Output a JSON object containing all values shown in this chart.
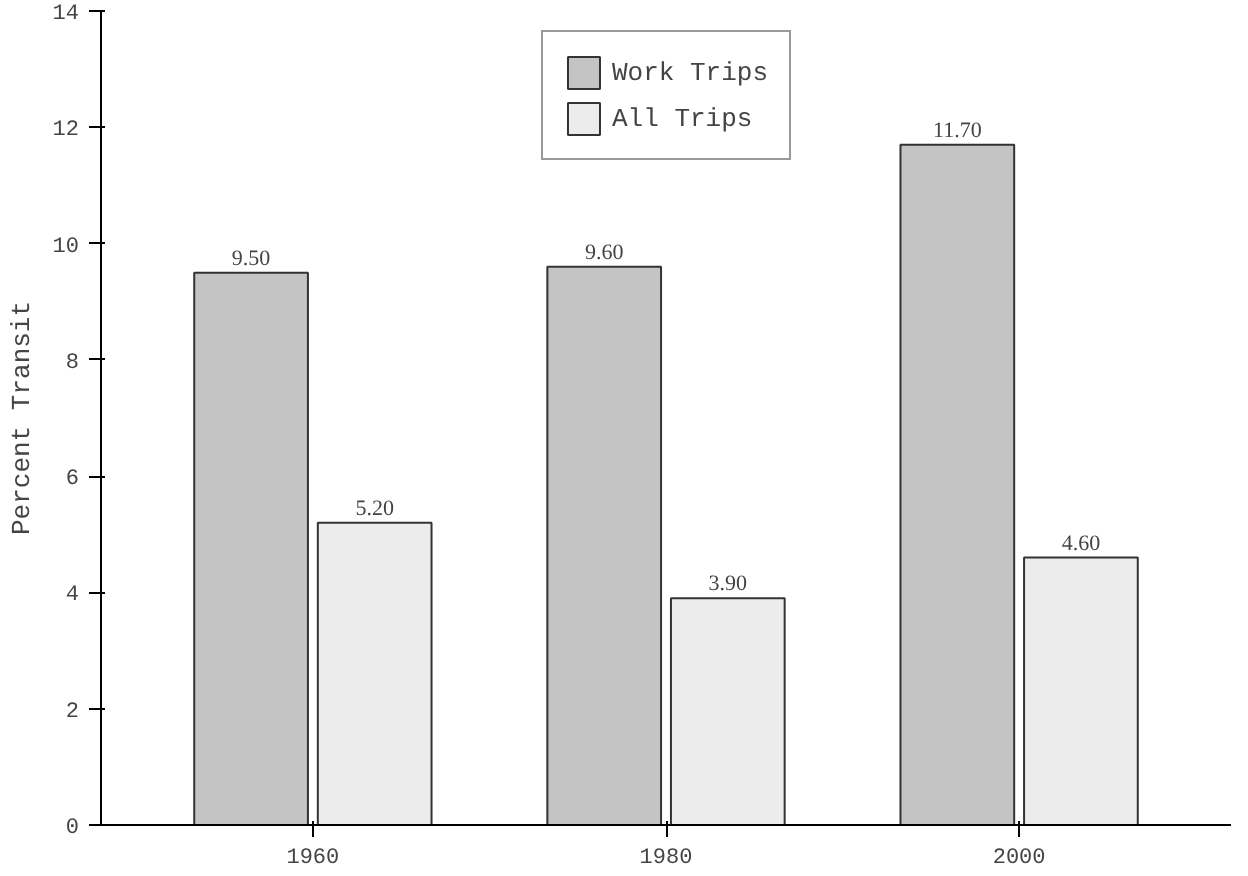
{
  "chart_data": {
    "type": "bar",
    "ylabel": "Percent Transit",
    "categories": [
      "1960",
      "1980",
      "2000"
    ],
    "series": [
      {
        "name": "Work Trips",
        "color": "#c4c4c4",
        "values": [
          9.5,
          9.6,
          11.7
        ],
        "value_labels": [
          "9.50",
          "9.60",
          "11.70"
        ]
      },
      {
        "name": "All Trips",
        "color": "#ececec",
        "values": [
          5.2,
          3.9,
          4.6
        ],
        "value_labels": [
          "5.20",
          "3.90",
          "4.60"
        ]
      }
    ],
    "ylim": [
      0,
      14
    ],
    "yticks": [
      0,
      2,
      4,
      6,
      8,
      10,
      12,
      14
    ],
    "grid": false,
    "legend": "top"
  }
}
